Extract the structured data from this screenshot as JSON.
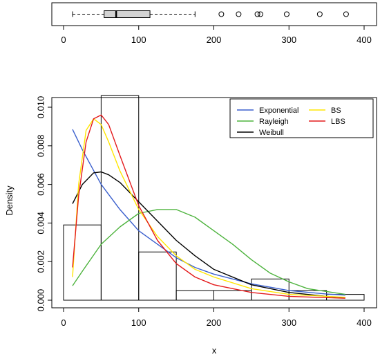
{
  "chart_data": [
    {
      "type": "boxplot",
      "orientation": "horizontal",
      "xlim": [
        0,
        400
      ],
      "x_ticks": [
        0,
        100,
        200,
        300,
        400
      ],
      "whisker_low": 12,
      "q1": 54,
      "median": 70,
      "q3": 115,
      "whisker_high": 175,
      "outliers": [
        210,
        233,
        258,
        262,
        297,
        341,
        376
      ],
      "box_color": "#d3d3d3"
    },
    {
      "type": "histogram",
      "xlabel": "x",
      "ylabel": "Density",
      "xlim": [
        0,
        400
      ],
      "ylim": [
        0,
        0.01
      ],
      "x_ticks": [
        0,
        100,
        200,
        300,
        400
      ],
      "y_ticks": [
        "0.000",
        "0.002",
        "0.004",
        "0.006",
        "0.008",
        "0.010"
      ],
      "bins": [
        {
          "from": 0,
          "to": 50,
          "density": 0.0039
        },
        {
          "from": 50,
          "to": 100,
          "density": 0.0106
        },
        {
          "from": 100,
          "to": 150,
          "density": 0.0025
        },
        {
          "from": 150,
          "to": 200,
          "density": 0.0005
        },
        {
          "from": 200,
          "to": 250,
          "density": 0.0005
        },
        {
          "from": 250,
          "to": 300,
          "density": 0.0011
        },
        {
          "from": 300,
          "to": 350,
          "density": 0.0005
        },
        {
          "from": 350,
          "to": 400,
          "density": 0.0003
        }
      ],
      "legend_position": "top-right",
      "series": [
        {
          "name": "Exponential",
          "color": "#3a5fcd",
          "x": [
            12,
            25,
            50,
            75,
            100,
            125,
            150,
            175,
            200,
            250,
            300,
            350,
            375
          ],
          "y": [
            0.00885,
            0.0078,
            0.006,
            0.0047,
            0.0036,
            0.0029,
            0.0022,
            0.0017,
            0.00135,
            0.00085,
            0.0005,
            0.00032,
            0.00026
          ]
        },
        {
          "name": "Rayleigh",
          "color": "#4db33d",
          "x": [
            12,
            25,
            50,
            75,
            100,
            125,
            150,
            175,
            200,
            225,
            250,
            275,
            300,
            325,
            350,
            375
          ],
          "y": [
            0.00075,
            0.0015,
            0.0029,
            0.0038,
            0.0045,
            0.0047,
            0.0047,
            0.0043,
            0.0036,
            0.0029,
            0.0021,
            0.0014,
            0.00095,
            0.0006,
            0.00045,
            0.0003
          ]
        },
        {
          "name": "Weibull",
          "color": "#000000",
          "x": [
            12,
            25,
            40,
            50,
            60,
            75,
            100,
            125,
            150,
            175,
            200,
            250,
            300,
            350,
            375
          ],
          "y": [
            0.005,
            0.006,
            0.0066,
            0.00665,
            0.0065,
            0.0061,
            0.0051,
            0.0041,
            0.0031,
            0.0023,
            0.0016,
            0.0008,
            0.0004,
            0.0002,
            0.00013
          ]
        },
        {
          "name": "BS",
          "color": "#ffe600",
          "x": [
            12,
            20,
            30,
            40,
            50,
            60,
            75,
            100,
            125,
            150,
            175,
            200,
            250,
            300,
            375
          ],
          "y": [
            0.0012,
            0.006,
            0.0088,
            0.0094,
            0.0091,
            0.0082,
            0.0067,
            0.0047,
            0.0033,
            0.0023,
            0.0016,
            0.0012,
            0.0006,
            0.0003,
            0.00015
          ]
        },
        {
          "name": "LBS",
          "color": "#e41a1c",
          "x": [
            12,
            20,
            30,
            40,
            50,
            60,
            75,
            100,
            125,
            150,
            175,
            200,
            250,
            300,
            375
          ],
          "y": [
            0.0017,
            0.0054,
            0.0082,
            0.0094,
            0.0096,
            0.0091,
            0.0075,
            0.0049,
            0.0031,
            0.0019,
            0.0012,
            0.0008,
            0.0004,
            0.0002,
            0.0001
          ]
        }
      ]
    }
  ]
}
